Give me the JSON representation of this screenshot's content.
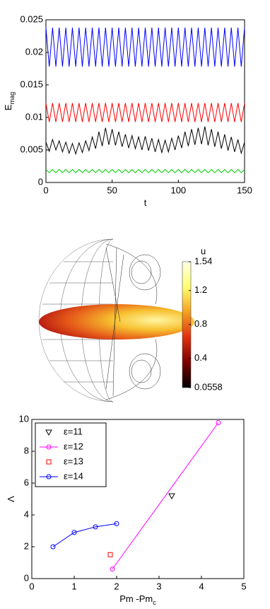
{
  "chart_data": [
    {
      "type": "line",
      "ylabel": "E",
      "ylabel_subscript": "mag",
      "xlabel": "t",
      "xlim": [
        0,
        150
      ],
      "xticks": [
        0,
        50,
        100,
        150
      ],
      "ylim": [
        0,
        0.025
      ],
      "yticks": [
        0,
        0.005,
        0.01,
        0.015,
        0.02,
        0.025
      ],
      "x": [
        0,
        2.5,
        5,
        7.5,
        10,
        12.5,
        15,
        17.5,
        20,
        22.5,
        25,
        27.5,
        30,
        32.5,
        35,
        37.5,
        40,
        42.5,
        45,
        47.5,
        50,
        52.5,
        55,
        57.5,
        60,
        62.5,
        65,
        67.5,
        70,
        72.5,
        75,
        77.5,
        80,
        82.5,
        85,
        87.5,
        90,
        92.5,
        95,
        97.5,
        100,
        102.5,
        105,
        107.5,
        110,
        112.5,
        115,
        117.5,
        120,
        122.5,
        125,
        127.5,
        130,
        132.5,
        135,
        137.5,
        140,
        142.5,
        145,
        147.5,
        150
      ],
      "series": [
        {
          "color": "#0000ff",
          "values": [
            0.0238,
            0.0178,
            0.0238,
            0.0178,
            0.0238,
            0.0178,
            0.0238,
            0.0178,
            0.0238,
            0.0178,
            0.0238,
            0.0178,
            0.0238,
            0.0178,
            0.0238,
            0.0178,
            0.0238,
            0.0178,
            0.0238,
            0.0178,
            0.0238,
            0.0178,
            0.0238,
            0.0178,
            0.0238,
            0.0178,
            0.0238,
            0.0178,
            0.0238,
            0.0178,
            0.0238,
            0.0178,
            0.0238,
            0.0178,
            0.0238,
            0.0178,
            0.0238,
            0.0178,
            0.0238,
            0.0178,
            0.0238,
            0.0178,
            0.0238,
            0.0178,
            0.0238,
            0.0178,
            0.0238,
            0.0178,
            0.0238,
            0.0178,
            0.0238,
            0.0178,
            0.0238,
            0.0178,
            0.0238,
            0.0178,
            0.0238,
            0.0178,
            0.0238,
            0.0178,
            0.0238
          ]
        },
        {
          "color": "#ff0000",
          "values": [
            0.0122,
            0.0093,
            0.0122,
            0.0093,
            0.0122,
            0.0093,
            0.0122,
            0.0093,
            0.0122,
            0.0093,
            0.0122,
            0.0093,
            0.0122,
            0.0093,
            0.0122,
            0.0093,
            0.0122,
            0.0093,
            0.0122,
            0.0093,
            0.0122,
            0.0093,
            0.0122,
            0.0093,
            0.0122,
            0.0093,
            0.0122,
            0.0093,
            0.0122,
            0.0093,
            0.0122,
            0.0093,
            0.0122,
            0.0093,
            0.0122,
            0.0093,
            0.0122,
            0.0093,
            0.0122,
            0.0093,
            0.0122,
            0.0093,
            0.0122,
            0.0093,
            0.0122,
            0.0093,
            0.0122,
            0.0093,
            0.0122,
            0.0093,
            0.0122,
            0.0093,
            0.0122,
            0.0093,
            0.0122,
            0.0093,
            0.0122,
            0.0093,
            0.0122,
            0.0093,
            0.0122
          ]
        },
        {
          "color": "#000000",
          "values": [
            0.0062,
            0.0048,
            0.0066,
            0.005,
            0.0064,
            0.0047,
            0.0062,
            0.0045,
            0.006,
            0.0044,
            0.0061,
            0.0046,
            0.0064,
            0.0049,
            0.007,
            0.0052,
            0.0078,
            0.0056,
            0.0084,
            0.0058,
            0.0082,
            0.0057,
            0.0078,
            0.0055,
            0.0074,
            0.0053,
            0.0072,
            0.0052,
            0.007,
            0.005,
            0.0071,
            0.0049,
            0.0068,
            0.0047,
            0.0066,
            0.0046,
            0.0065,
            0.0047,
            0.0068,
            0.005,
            0.0072,
            0.0053,
            0.0078,
            0.0056,
            0.0082,
            0.0058,
            0.0084,
            0.0059,
            0.0086,
            0.0057,
            0.0082,
            0.0055,
            0.0078,
            0.0052,
            0.0074,
            0.0049,
            0.007,
            0.0047,
            0.0066,
            0.0045,
            0.0062
          ]
        },
        {
          "color": "#00cc00",
          "values": [
            0.002,
            0.0015,
            0.002,
            0.0015,
            0.002,
            0.0015,
            0.002,
            0.0015,
            0.002,
            0.0015,
            0.002,
            0.0015,
            0.002,
            0.0015,
            0.002,
            0.0015,
            0.002,
            0.0015,
            0.002,
            0.0015,
            0.002,
            0.0015,
            0.002,
            0.0015,
            0.002,
            0.0015,
            0.002,
            0.0015,
            0.002,
            0.0015,
            0.002,
            0.0015,
            0.002,
            0.0015,
            0.002,
            0.0015,
            0.002,
            0.0015,
            0.002,
            0.0015,
            0.002,
            0.0015,
            0.002,
            0.0015,
            0.002,
            0.0015,
            0.002,
            0.0015,
            0.002,
            0.0015,
            0.002,
            0.0015,
            0.002,
            0.0015,
            0.002,
            0.0015,
            0.002,
            0.0015,
            0.002,
            0.0015,
            0.002
          ]
        }
      ]
    },
    {
      "type": "colorbar",
      "title": "u",
      "ylim": [
        0.0558,
        1.54
      ],
      "yticks": [
        0.0558,
        0.4,
        0.8,
        1.2,
        1.54
      ],
      "colors": [
        "#000000",
        "#7a0000",
        "#e03010",
        "#f5a020",
        "#ffff70",
        "#ffffe8"
      ]
    },
    {
      "type": "line",
      "ylabel": "Λ",
      "xlabel": "Pm -Pm",
      "xlabel_subscript": "c",
      "xlim": [
        0,
        5
      ],
      "xticks": [
        0,
        1,
        2,
        3,
        4,
        5
      ],
      "ylim": [
        0,
        10
      ],
      "yticks": [
        0,
        2,
        4,
        6,
        8,
        10
      ],
      "legend": "upper left",
      "series": [
        {
          "name": "ε=11",
          "color": "#000000",
          "marker": "v",
          "line": false,
          "x": [
            3.3
          ],
          "values": [
            5.2
          ]
        },
        {
          "name": "ε=12",
          "color": "#ff00ff",
          "marker": "o",
          "line": true,
          "x": [
            1.9,
            4.4
          ],
          "values": [
            0.6,
            9.8
          ]
        },
        {
          "name": "ε=13",
          "color": "#ff0000",
          "marker": "s",
          "line": false,
          "x": [
            1.85
          ],
          "values": [
            1.5
          ]
        },
        {
          "name": "ε=14",
          "color": "#0000ff",
          "marker": "o",
          "line": true,
          "x": [
            0.5,
            1.0,
            1.5,
            2.0
          ],
          "values": [
            2.0,
            2.9,
            3.25,
            3.45
          ]
        }
      ]
    }
  ]
}
